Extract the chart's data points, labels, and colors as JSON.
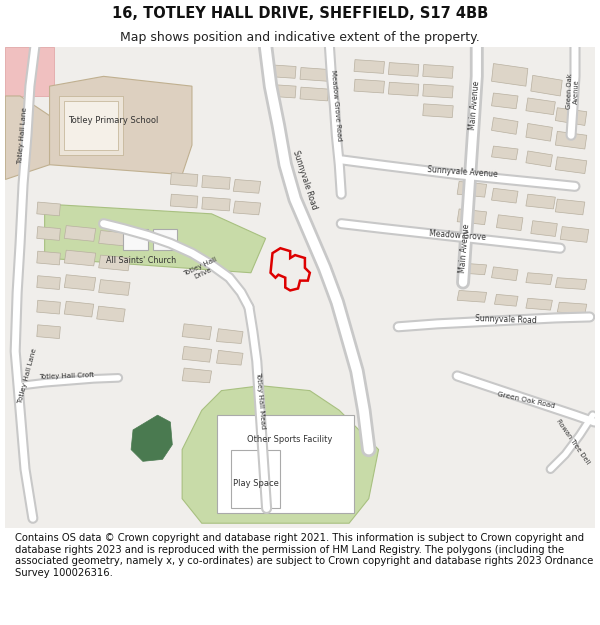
{
  "title_line1": "16, TOTLEY HALL DRIVE, SHEFFIELD, S17 4BB",
  "title_line2": "Map shows position and indicative extent of the property.",
  "footer_text": "Contains OS data © Crown copyright and database right 2021. This information is subject to Crown copyright and database rights 2023 and is reproduced with the permission of HM Land Registry. The polygons (including the associated geometry, namely x, y co-ordinates) are subject to Crown copyright and database rights 2023 Ordnance Survey 100026316.",
  "bg_color": "#f0eeeb",
  "road_color": "#ffffff",
  "road_outline_color": "#c8c8c8",
  "building_color": "#ddd5c8",
  "building_outline_color": "#b8b0a0",
  "green_area_color": "#c8dba8",
  "green_area_outline": "#a8c080",
  "dark_green_color": "#4a7a50",
  "school_color": "#ddd0c0",
  "school_outline": "#c0b090",
  "red_polygon_color": "#dd0000",
  "white_poly_color": "#ffffff",
  "title_fontsize": 10.5,
  "subtitle_fontsize": 9,
  "footer_fontsize": 7.2,
  "label_fontsize": 6.5
}
